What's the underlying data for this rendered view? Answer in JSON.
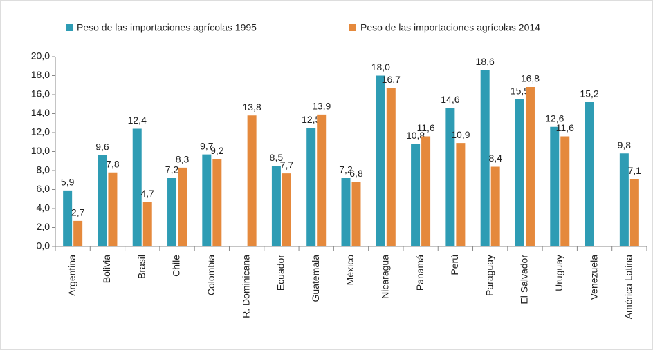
{
  "chart_data": {
    "type": "bar",
    "categories": [
      "Argentina",
      "Bolivia",
      "Brasil",
      "Chile",
      "Colombia",
      "R. Dominicana",
      "Ecuador",
      "Guatemala",
      "México",
      "Nicaragua",
      "Panamá",
      "Perú",
      "Paraguay",
      "El Salvador",
      "Uruguay",
      "Venezuela",
      "América Latina"
    ],
    "series": [
      {
        "name": "Peso de las importaciones agrícolas 1995",
        "color": "#2e9cb4",
        "values": [
          5.9,
          9.6,
          12.4,
          7.2,
          9.7,
          null,
          8.5,
          12.5,
          7.2,
          18.0,
          10.8,
          14.6,
          18.6,
          15.5,
          12.6,
          15.2,
          9.8
        ],
        "value_labels": [
          "5,9",
          "9,6",
          "12,4",
          "7,2",
          "9,7",
          null,
          "8,5",
          "12,5",
          "7,2",
          "18,0",
          "10,8",
          "14,6",
          "18,6",
          "15,5",
          "12,6",
          "15,2",
          "9,8"
        ]
      },
      {
        "name": "Peso de las importaciones agrícolas 2014",
        "color": "#e5893c",
        "values": [
          2.7,
          7.8,
          4.7,
          8.3,
          9.2,
          13.8,
          7.7,
          13.9,
          6.8,
          16.7,
          11.6,
          10.9,
          8.4,
          16.8,
          11.6,
          null,
          7.1
        ],
        "value_labels": [
          "2,7",
          "7,8",
          "4,7",
          "8,3",
          "9,2",
          "13,8",
          "7,7",
          "13,9",
          "6,8",
          "16,7",
          "11,6",
          "10,9",
          "8,4",
          "16,8",
          "11,6",
          null,
          "7,1"
        ]
      }
    ],
    "ylim": [
      0,
      20
    ],
    "yticks": [
      {
        "value": 0,
        "label": "0,0"
      },
      {
        "value": 2,
        "label": "2,0"
      },
      {
        "value": 4,
        "label": "4,0"
      },
      {
        "value": 6,
        "label": "6,0"
      },
      {
        "value": 8,
        "label": "8,0"
      },
      {
        "value": 10,
        "label": "10,0"
      },
      {
        "value": 12,
        "label": "12,0"
      },
      {
        "value": 14,
        "label": "14,0"
      },
      {
        "value": 16,
        "label": "16,0"
      },
      {
        "value": 18,
        "label": "18,0"
      },
      {
        "value": 20,
        "label": "20,0"
      }
    ],
    "grid": false,
    "legend": "top"
  }
}
